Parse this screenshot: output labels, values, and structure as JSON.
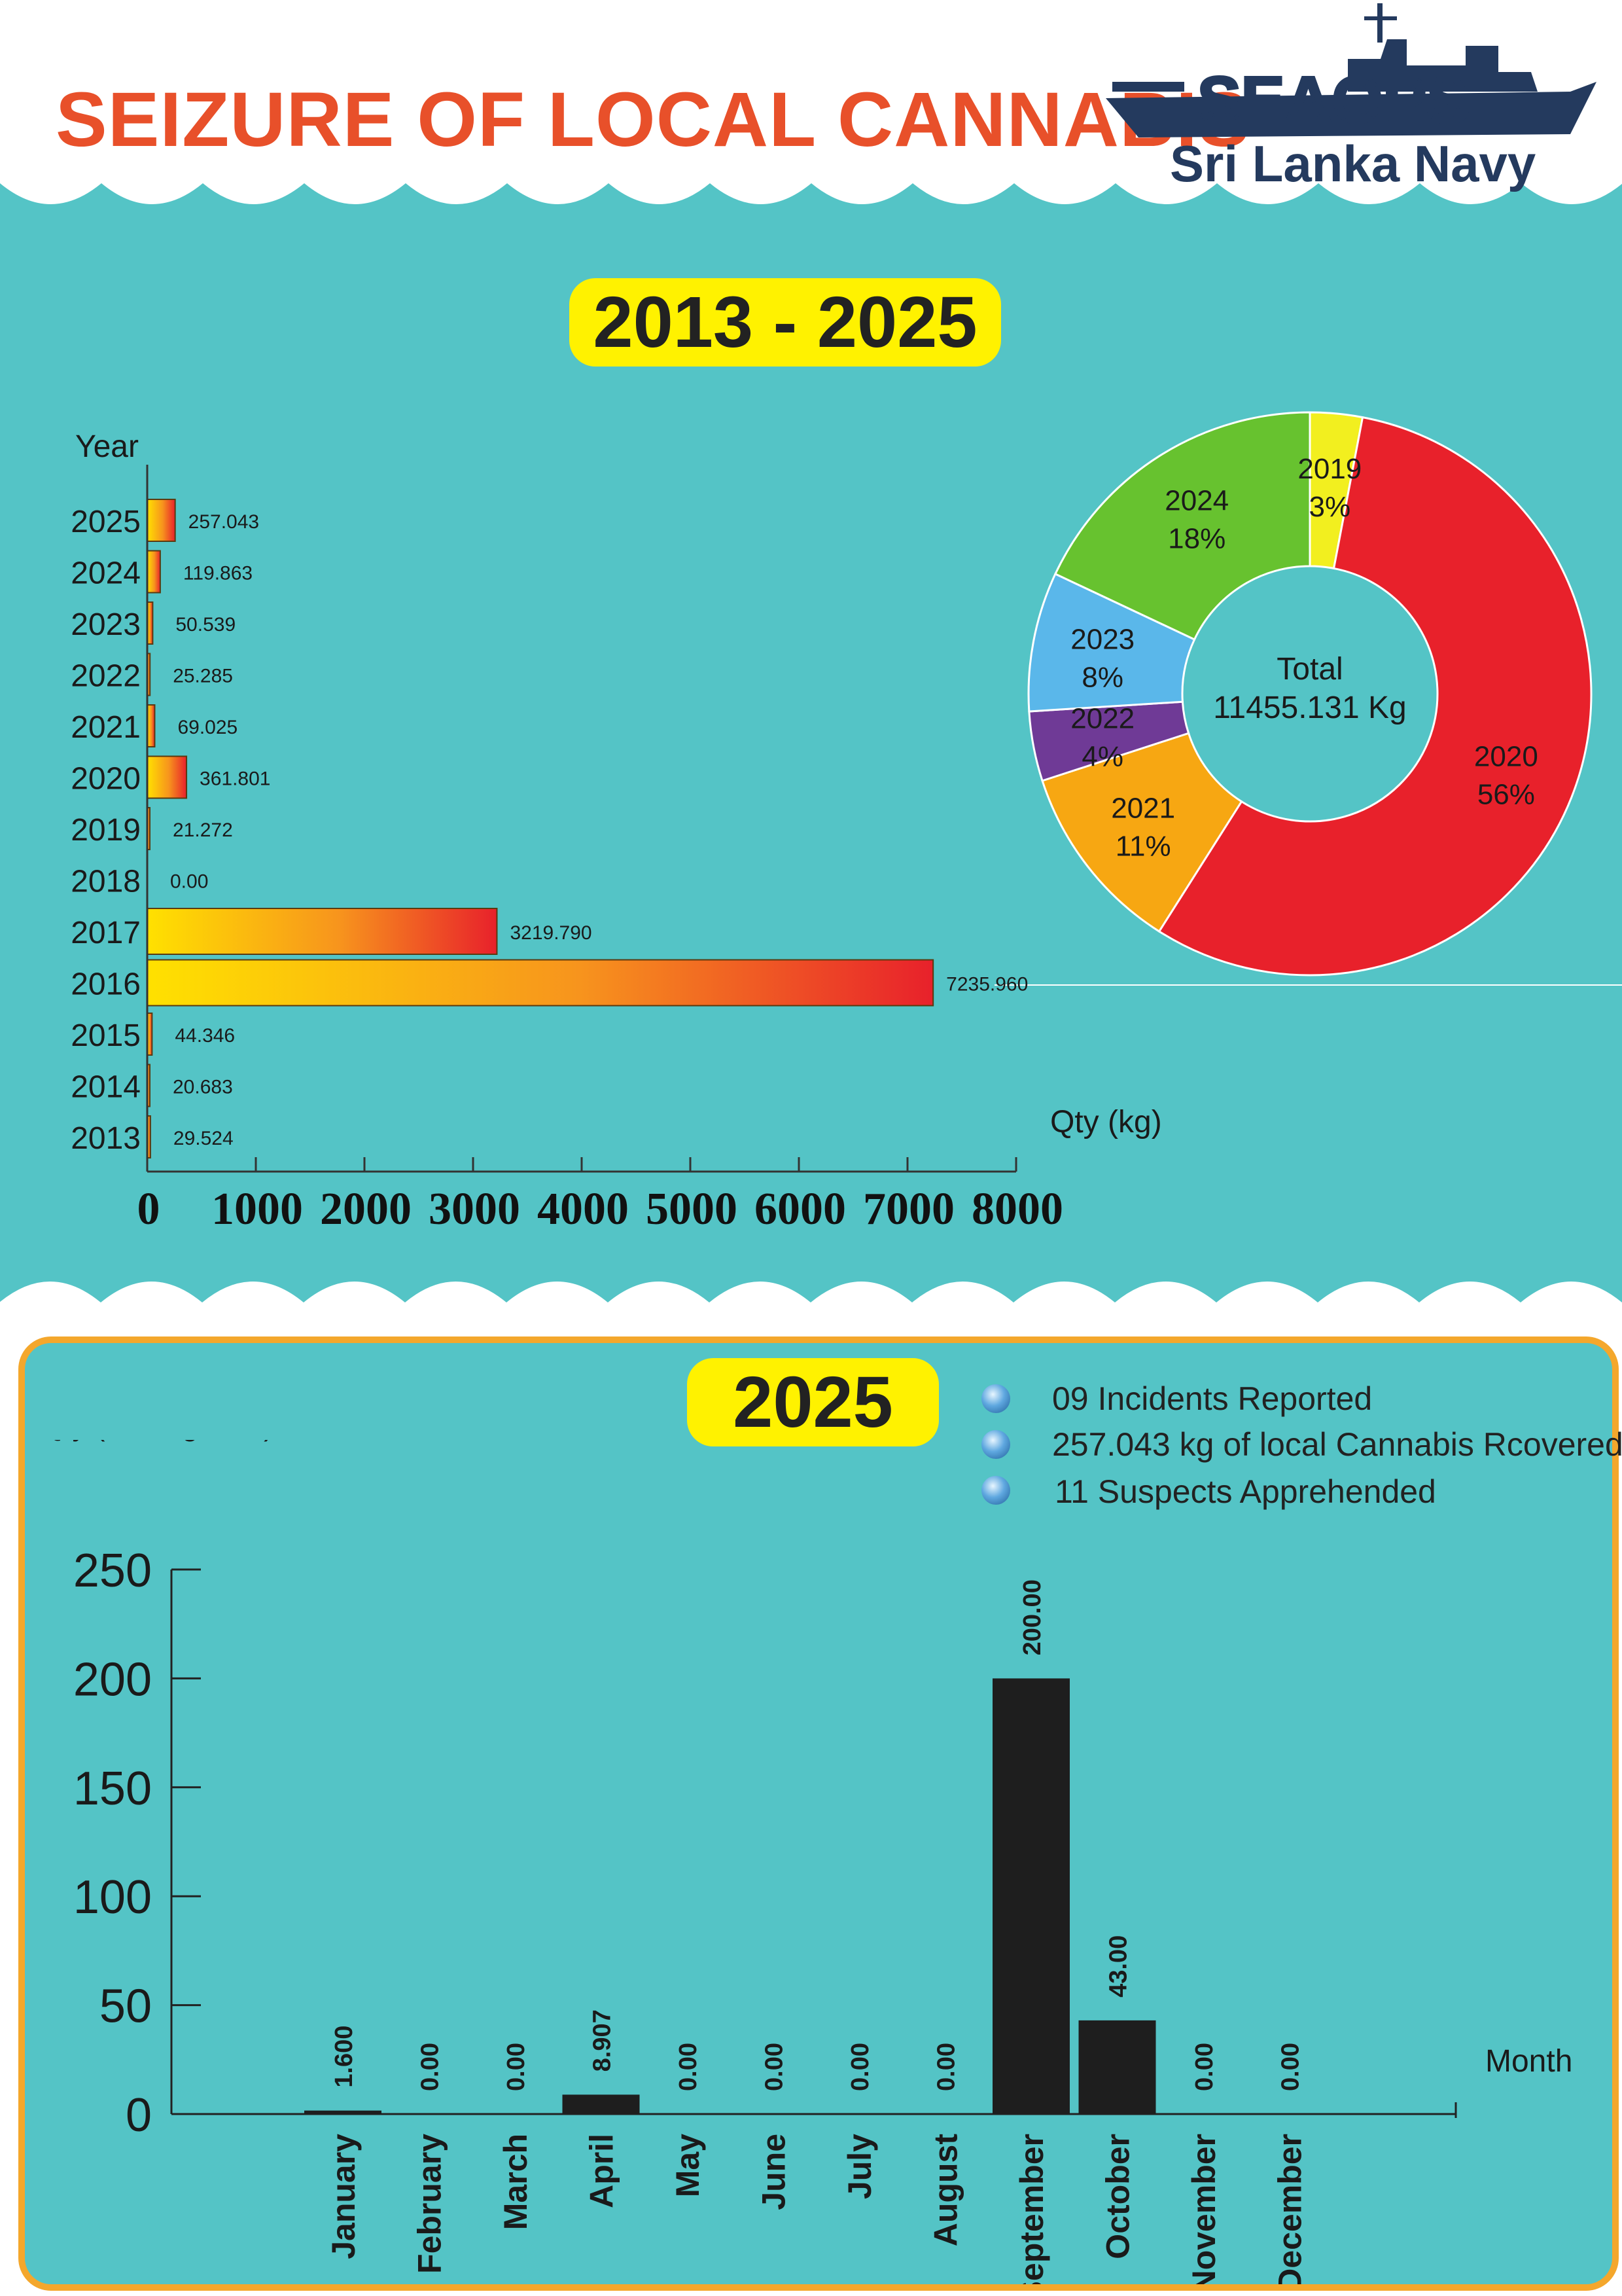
{
  "header": {
    "title": "SEIZURE OF LOCAL CANNABIS",
    "logo_text": "SEAOPS",
    "logo_subtitle": "Sri Lanka Navy"
  },
  "section1": {
    "range_label": "2013 - 2025",
    "pie_center_line1": "Total",
    "pie_center_line2": "11455.131 Kg"
  },
  "section2": {
    "year_label": "2025",
    "facts": [
      "09 Incidents Reported",
      "257.043 kg of local Cannabis Rcovered",
      "11 Suspects Apprehended"
    ]
  },
  "colors": {
    "background": "#54c4c6",
    "title": "#e8502a",
    "logo": "#243a5e",
    "pill": "#fff200",
    "frame": "#f4a72c",
    "bar_dark": "#1e1e1e"
  },
  "chart_data": [
    {
      "type": "bar",
      "orientation": "horizontal",
      "ylabel": "Year",
      "xlabel": "Qty (kg)",
      "categories": [
        "2025",
        "2024",
        "2023",
        "2022",
        "2021",
        "2020",
        "2019",
        "2018",
        "2017",
        "2016",
        "2015",
        "2014",
        "2013"
      ],
      "values": [
        257.043,
        119.863,
        50.539,
        25.285,
        69.025,
        361.801,
        21.272,
        0.0,
        3219.79,
        7235.96,
        44.346,
        20.683,
        29.524
      ],
      "value_labels": [
        "257.043",
        "119.863",
        "50.539",
        "25.285",
        "69.025",
        "361.801",
        "21.272",
        "0.00",
        "3219.790",
        "7235.960",
        "44.346",
        "20.683",
        "29.524"
      ],
      "xlim": [
        0,
        8000
      ],
      "xticks": [
        "0",
        "1000",
        "2000",
        "3000",
        "4000",
        "5000",
        "6000",
        "7000",
        "8000"
      ],
      "grid": false
    },
    {
      "type": "pie",
      "style": "donut",
      "slices": [
        {
          "label": "2019",
          "percent": "3%",
          "value": 3,
          "color": "#f2ef1f"
        },
        {
          "label": "2020",
          "percent": "56%",
          "value": 56,
          "color": "#e8212b"
        },
        {
          "label": "2021",
          "percent": "11%",
          "value": 11,
          "color": "#f7a712"
        },
        {
          "label": "2022",
          "percent": "4%",
          "value": 4,
          "color": "#6f3a96"
        },
        {
          "label": "2023",
          "percent": "8%",
          "value": 8,
          "color": "#5ab7ea"
        },
        {
          "label": "2024",
          "percent": "18%",
          "value": 18,
          "color": "#67c22f"
        }
      ]
    },
    {
      "type": "bar",
      "ylabel": "Qty (In kilograms)",
      "xlabel": "Month",
      "categories": [
        "January",
        "February",
        "March",
        "April",
        "May",
        "June",
        "July",
        "August",
        "September",
        "October",
        "November",
        "December"
      ],
      "values": [
        1.6,
        0.0,
        0.0,
        8.907,
        0.0,
        0.0,
        0.0,
        0.0,
        200.0,
        43.0,
        0.0,
        0.0
      ],
      "value_labels": [
        "1.600",
        "0.00",
        "0.00",
        "8.907",
        "0.00",
        "0.00",
        "0.00",
        "0.00",
        "200.00",
        "43.00",
        "0.00",
        "0.00"
      ],
      "ylim": [
        0,
        250
      ],
      "yticks": [
        "0",
        "50",
        "100",
        "150",
        "200",
        "250"
      ],
      "grid": false
    }
  ]
}
